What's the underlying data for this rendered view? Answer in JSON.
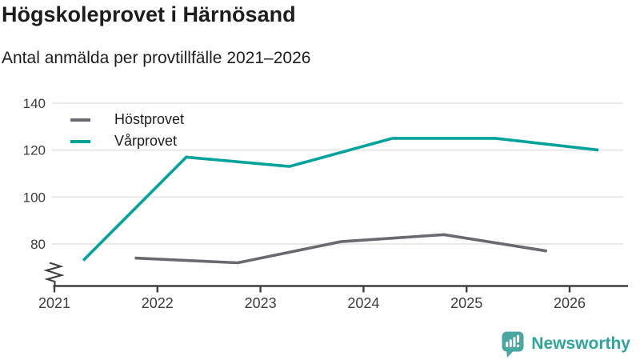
{
  "header": {
    "title": "Högskoleprovet i Härnösand",
    "subtitle": "Antal anmälda per provtillfälle 2021–2026"
  },
  "chart_data": {
    "type": "line",
    "title": "Högskoleprovet i Härnösand",
    "subtitle": "Antal anmälda per provtillfälle 2021–2026",
    "ylabel": "Antal anmälda",
    "xlabel": "",
    "grid": "horizontal-only",
    "legend_position": "top-left-inside",
    "y_axis": {
      "ticks": [
        80,
        100,
        120,
        140
      ],
      "min": 62,
      "max": 145,
      "broken_axis_symbol": true
    },
    "x_axis": {
      "ticks": [
        2021,
        2022,
        2023,
        2024,
        2025,
        2026
      ],
      "min": 2021,
      "max": 2026.56
    },
    "series": [
      {
        "name": "Höstprovet",
        "color": "#696970",
        "points": [
          {
            "x": 2021.78,
            "y": 74
          },
          {
            "x": 2022.78,
            "y": 72
          },
          {
            "x": 2023.78,
            "y": 81
          },
          {
            "x": 2024.78,
            "y": 84
          },
          {
            "x": 2025.78,
            "y": 77
          }
        ]
      },
      {
        "name": "Vårprovet",
        "color": "#00a29a",
        "points": [
          {
            "x": 2021.28,
            "y": 73
          },
          {
            "x": 2022.28,
            "y": 117
          },
          {
            "x": 2023.28,
            "y": 113
          },
          {
            "x": 2024.28,
            "y": 125
          },
          {
            "x": 2025.28,
            "y": 125
          },
          {
            "x": 2026.28,
            "y": 120
          }
        ]
      }
    ]
  },
  "colors": {
    "gridline": "#e8e8e8",
    "axis": "#3f3f3f",
    "tick_text": "#3d3d3d",
    "title_text": "#1d1d1b"
  },
  "branding": {
    "label": "Newsworthy",
    "icon": "newsworthy-bar-chart-bubble-icon",
    "icon_color": "#4aa6a0",
    "text_color": "#2da59c"
  }
}
